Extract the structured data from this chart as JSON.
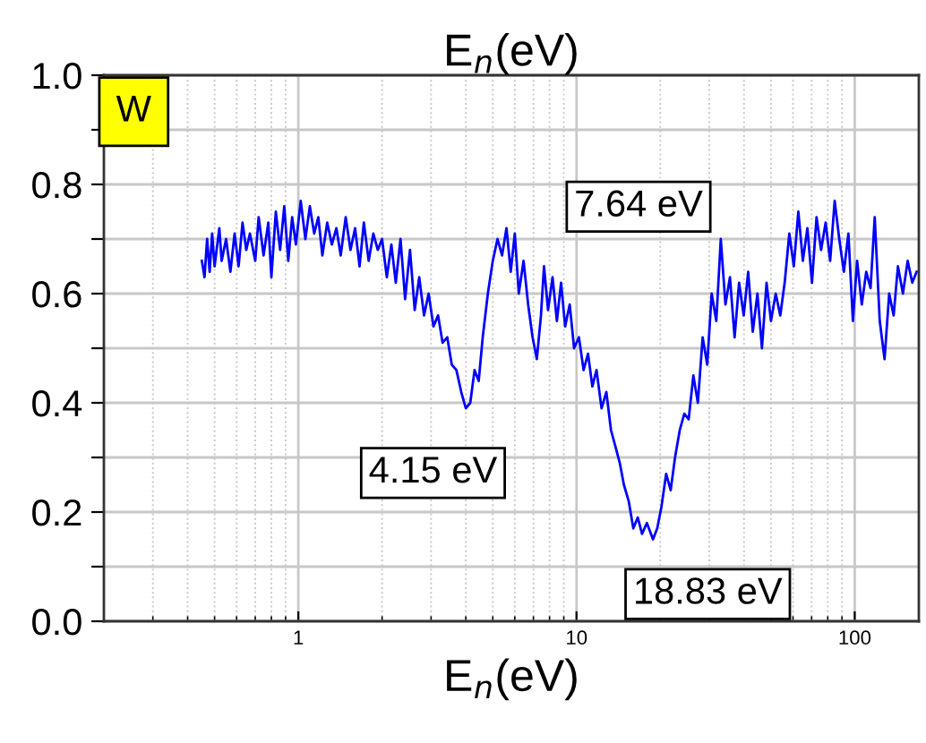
{
  "chart_data": {
    "type": "line",
    "title": "E$_{n}$(eV)",
    "xlabel": "E$_{n}$(eV)",
    "log": "x",
    "grid": true,
    "line_style": "solid",
    "marker": "none",
    "xlim": [
      0.2,
      170
    ],
    "xticks": [
      1,
      10,
      100
    ],
    "ylim": [
      0,
      1.0
    ],
    "yticks": [
      {
        "value": 0,
        "label": "0.0"
      },
      {
        "value": 0.1,
        "label": null
      },
      0.2,
      {
        "value": 0.3,
        "label": null
      },
      0.4,
      {
        "value": 0.5,
        "label": null
      },
      0.6,
      {
        "value": 0.7,
        "label": null
      },
      0.8,
      {
        "value": 0.9,
        "label": null
      },
      {
        "value": 1.0,
        "label": "1.0"
      }
    ],
    "annotations": [
      "W",
      {
        "text": "4.15 eV",
        "x": 4.15,
        "y": 0.39
      },
      {
        "text": "7.64 eV",
        "x": 7.64,
        "y": 0.65
      },
      {
        "text": "18.83 eV",
        "x": 18.83,
        "y": 0.15
      }
    ],
    "series": [
      {
        "color": "#0000ff",
        "x": [
          0.45,
          0.46,
          0.47,
          0.48,
          0.49,
          0.5,
          0.52,
          0.53,
          0.55,
          0.57,
          0.59,
          0.61,
          0.63,
          0.65,
          0.67,
          0.7,
          0.72,
          0.75,
          0.78,
          0.8,
          0.83,
          0.86,
          0.89,
          0.92,
          0.95,
          0.98,
          1.02,
          1.06,
          1.1,
          1.14,
          1.18,
          1.22,
          1.27,
          1.32,
          1.37,
          1.42,
          1.48,
          1.54,
          1.6,
          1.66,
          1.72,
          1.79,
          1.86,
          1.93,
          2.0,
          2.08,
          2.16,
          2.24,
          2.33,
          2.42,
          2.52,
          2.62,
          2.72,
          2.83,
          2.94,
          3.06,
          3.18,
          3.3,
          3.43,
          3.56,
          3.7,
          3.85,
          4.0,
          4.15,
          4.3,
          4.45,
          4.6,
          4.8,
          5.0,
          5.2,
          5.4,
          5.6,
          5.8,
          6.0,
          6.2,
          6.45,
          6.7,
          6.95,
          7.2,
          7.45,
          7.64,
          7.9,
          8.2,
          8.5,
          8.8,
          9.1,
          9.45,
          9.8,
          10.2,
          10.6,
          11.0,
          11.4,
          11.8,
          12.3,
          12.8,
          13.3,
          13.8,
          14.3,
          14.8,
          15.4,
          16.0,
          16.6,
          17.2,
          17.9,
          18.83,
          19.5,
          20.2,
          21.0,
          21.8,
          22.6,
          23.5,
          24.4,
          25.3,
          26.3,
          27.3,
          28.4,
          29.5,
          30.6,
          31.8,
          33.0,
          34.3,
          35.6,
          37.0,
          38.4,
          39.9,
          41.4,
          43.0,
          44.7,
          46.4,
          48.2,
          50.0,
          52.0,
          54.0,
          56.0,
          58.2,
          60.4,
          62.7,
          65.1,
          67.6,
          70.2,
          72.9,
          75.7,
          78.6,
          81.6,
          84.7,
          88.0,
          91.4,
          94.9,
          98.5,
          102,
          106,
          110,
          114,
          118,
          123,
          128,
          133,
          138,
          143,
          149,
          155,
          161,
          167
        ],
        "values": [
          0.66,
          0.63,
          0.7,
          0.64,
          0.71,
          0.65,
          0.72,
          0.66,
          0.7,
          0.64,
          0.71,
          0.65,
          0.73,
          0.68,
          0.71,
          0.66,
          0.74,
          0.67,
          0.73,
          0.63,
          0.75,
          0.68,
          0.76,
          0.66,
          0.74,
          0.69,
          0.77,
          0.7,
          0.76,
          0.71,
          0.74,
          0.67,
          0.73,
          0.69,
          0.72,
          0.67,
          0.74,
          0.68,
          0.72,
          0.65,
          0.73,
          0.66,
          0.71,
          0.68,
          0.7,
          0.63,
          0.69,
          0.62,
          0.7,
          0.59,
          0.68,
          0.57,
          0.63,
          0.56,
          0.6,
          0.54,
          0.56,
          0.51,
          0.52,
          0.47,
          0.46,
          0.42,
          0.39,
          0.4,
          0.46,
          0.44,
          0.52,
          0.6,
          0.66,
          0.7,
          0.67,
          0.72,
          0.64,
          0.71,
          0.6,
          0.66,
          0.58,
          0.52,
          0.48,
          0.56,
          0.65,
          0.57,
          0.63,
          0.55,
          0.62,
          0.54,
          0.58,
          0.5,
          0.52,
          0.46,
          0.49,
          0.43,
          0.46,
          0.39,
          0.42,
          0.35,
          0.32,
          0.29,
          0.25,
          0.22,
          0.17,
          0.19,
          0.16,
          0.18,
          0.15,
          0.17,
          0.21,
          0.27,
          0.24,
          0.3,
          0.35,
          0.38,
          0.37,
          0.45,
          0.4,
          0.52,
          0.47,
          0.6,
          0.55,
          0.7,
          0.58,
          0.63,
          0.52,
          0.62,
          0.56,
          0.64,
          0.53,
          0.6,
          0.5,
          0.62,
          0.55,
          0.6,
          0.56,
          0.62,
          0.71,
          0.65,
          0.75,
          0.66,
          0.72,
          0.62,
          0.74,
          0.68,
          0.73,
          0.66,
          0.77,
          0.7,
          0.64,
          0.71,
          0.55,
          0.66,
          0.58,
          0.64,
          0.61,
          0.74,
          0.55,
          0.48,
          0.6,
          0.56,
          0.65,
          0.6,
          0.66,
          0.62,
          0.64
        ]
      }
    ]
  }
}
